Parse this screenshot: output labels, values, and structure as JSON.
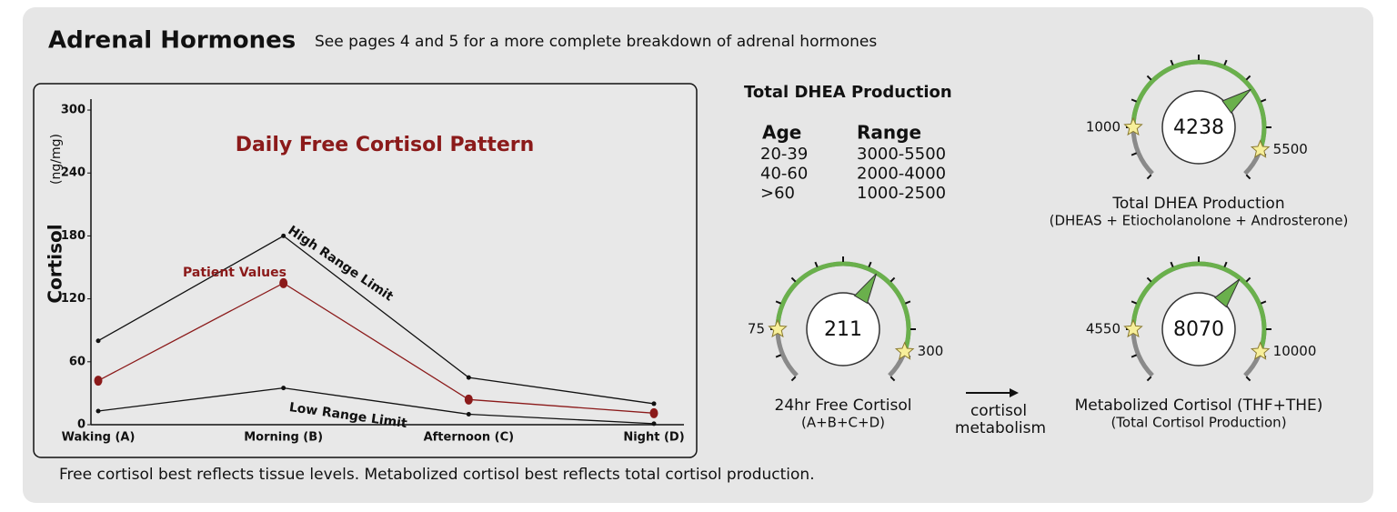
{
  "header": {
    "title": "Adrenal Hormones",
    "subtitle": "See pages 4 and 5 for a more complete breakdown of adrenal hormones"
  },
  "chart_data": {
    "type": "line",
    "title": "Daily Free Cortisol Pattern",
    "y_label": "Cortisol",
    "y_unit": "(ng/mg)",
    "categories": [
      "Waking (A)",
      "Morning (B)",
      "Afternoon (C)",
      "Night (D)"
    ],
    "series": [
      {
        "name": "High Range Limit",
        "color": "#111111",
        "values": [
          80,
          180,
          45,
          20
        ]
      },
      {
        "name": "Patient Values",
        "color": "#8b1a1a",
        "values": [
          42,
          135,
          24,
          11
        ]
      },
      {
        "name": "Low Range Limit",
        "color": "#111111",
        "values": [
          13,
          35,
          10,
          1
        ]
      }
    ],
    "ylim": [
      0,
      310
    ],
    "yticks": [
      0,
      60,
      120,
      180,
      240,
      300
    ]
  },
  "dhea_table": {
    "title": "Total DHEA Production",
    "header": [
      "Age",
      "Range"
    ],
    "rows": [
      [
        "20-39",
        "3000-5500"
      ],
      [
        "40-60",
        "2000-4000"
      ],
      [
        ">60",
        "1000-2500"
      ]
    ]
  },
  "gauges": [
    {
      "value": 4238,
      "low": 1000,
      "high": 5500,
      "title": "Total DHEA Production",
      "subtitle": "(DHEAS + Etiocholanolone + Androsterone)"
    },
    {
      "value": 211,
      "low": 75,
      "high": 300,
      "title": "24hr Free Cortisol",
      "subtitle": "(A+B+C+D)"
    },
    {
      "value": 8070,
      "low": 4550,
      "high": 10000,
      "title": "Metabolized Cortisol (THF+THE)",
      "subtitle": "(Total Cortisol Production)"
    }
  ],
  "arrow_label": [
    "cortisol",
    "metabolism"
  ],
  "footer": "Free cortisol best reflects tissue levels. Metabolized cortisol best reflects total cortisol production."
}
